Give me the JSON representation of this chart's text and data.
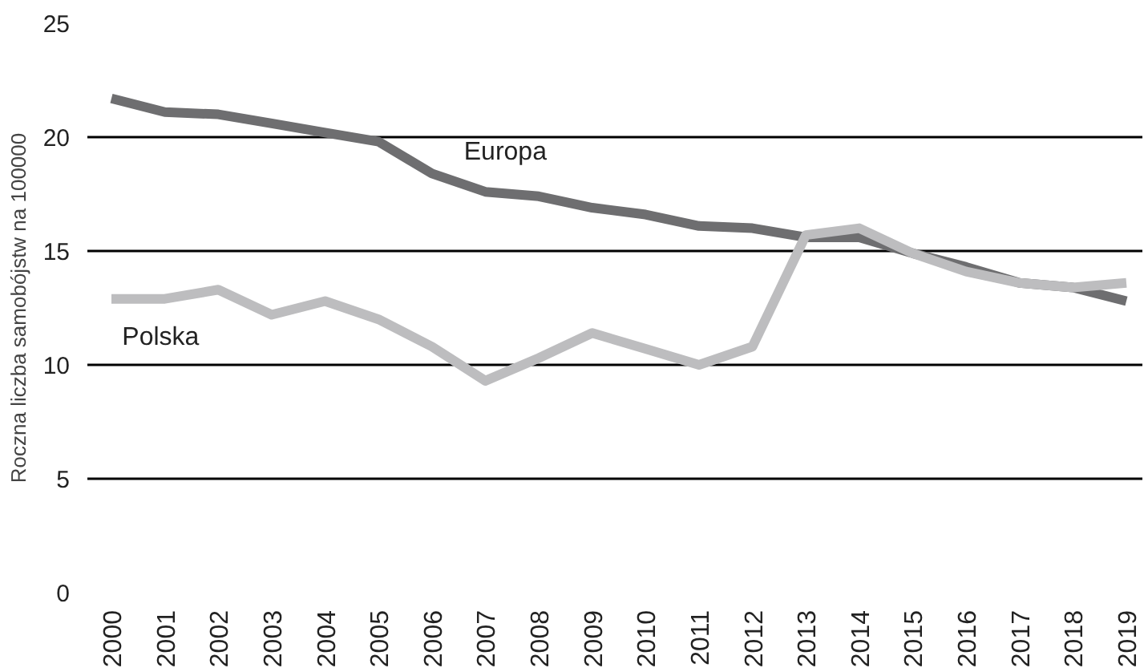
{
  "chart_data": {
    "type": "line",
    "ylabel": "Roczna liczba samobójstw na 100000",
    "categories": [
      "2000",
      "2001",
      "2002",
      "2003",
      "2004",
      "2005",
      "2006",
      "2007",
      "2008",
      "2009",
      "2010",
      "2011",
      "2012",
      "2013",
      "2014",
      "2015",
      "2016",
      "2017",
      "2018",
      "2019"
    ],
    "series": [
      {
        "name": "Europa",
        "color": "#6e6e70",
        "values": [
          21.7,
          21.1,
          21.0,
          20.6,
          20.2,
          19.8,
          18.4,
          17.6,
          17.4,
          16.9,
          16.6,
          16.1,
          16.0,
          15.6,
          15.6,
          14.9,
          14.3,
          13.6,
          13.4,
          12.8
        ]
      },
      {
        "name": "Polska",
        "color": "#bdbdbf",
        "values": [
          12.9,
          12.9,
          13.3,
          12.2,
          12.8,
          12.0,
          10.8,
          9.3,
          10.3,
          11.4,
          10.7,
          10.0,
          10.8,
          15.7,
          16.0,
          14.9,
          14.1,
          13.6,
          13.4,
          13.6
        ]
      }
    ],
    "ylim": [
      0,
      25
    ],
    "yticks": [
      0,
      5,
      10,
      15,
      20,
      25
    ],
    "grid": "y",
    "legend": false,
    "marker": "none",
    "line_style": "solid"
  }
}
